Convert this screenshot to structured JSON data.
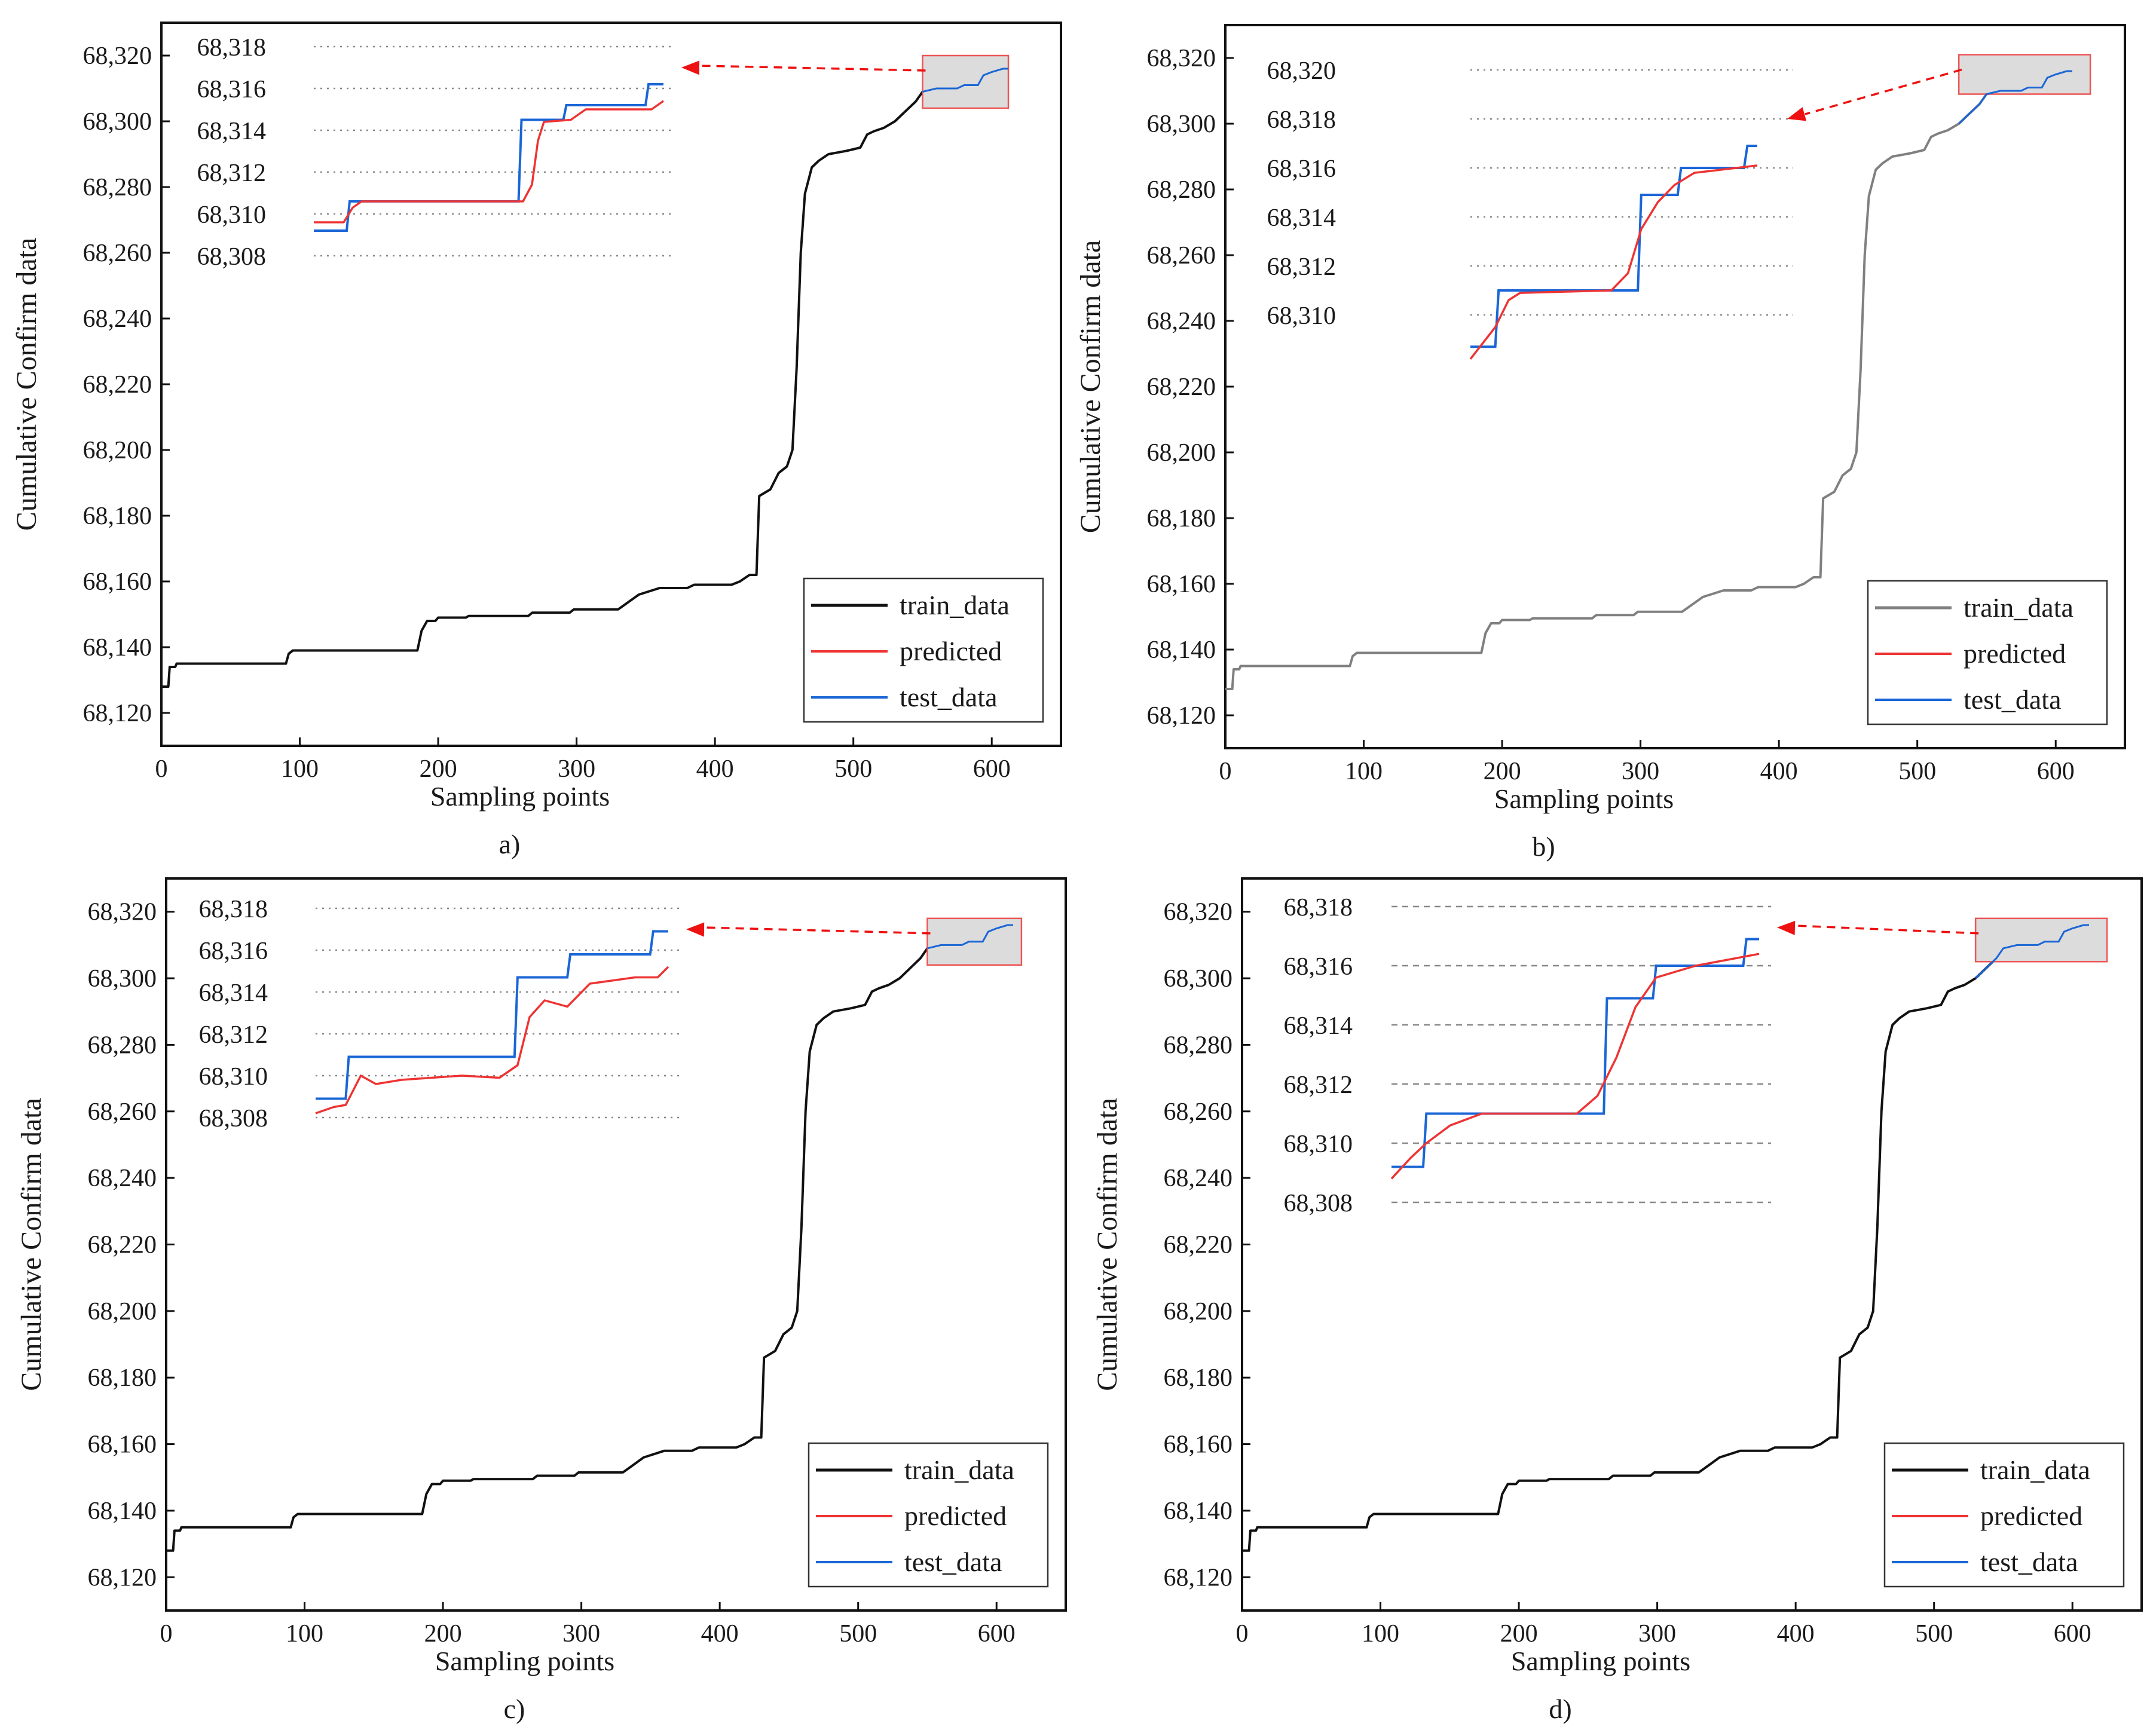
{
  "figure": {
    "panel_captions": [
      "a)",
      "b)",
      "c)",
      "d)"
    ]
  },
  "colors": {
    "train_black": "#111111",
    "train_gray": "#808080",
    "predicted": "#ee3333",
    "test": "#1a66d6",
    "zoom_box_fill": "#dcdcdc",
    "zoom_box_stroke": "#ee5555",
    "arrow": "#ee1111",
    "grid": "#888888"
  },
  "chart_data": [
    {
      "panel": "a)",
      "type": "line",
      "xlabel": "Sampling points",
      "ylabel": "Cumulative Confirm data",
      "xlim": [
        0,
        650
      ],
      "ylim": [
        68110,
        68330
      ],
      "xticks": [
        0,
        100,
        200,
        300,
        400,
        500,
        600
      ],
      "yticks": [
        "68,120",
        "68,140",
        "68,160",
        "68,180",
        "68,200",
        "68,220",
        "68,240",
        "68,260",
        "68,280",
        "68,300",
        "68,320"
      ],
      "legend": {
        "position": "bottom-right",
        "entries": [
          "train_data",
          "predicted",
          "test_data"
        ]
      },
      "train_color": "black",
      "zoom_region": {
        "x": [
          550,
          612
        ],
        "y": [
          68304,
          68320
        ]
      },
      "inset": {
        "yticks": [
          "68,308",
          "68,310",
          "68,312",
          "68,314",
          "68,316",
          "68,318"
        ],
        "grid_style": "dotted",
        "series": {
          "test": [
            [
              108,
              68309.2
            ],
            [
              130,
              68309.2
            ],
            [
              132,
              68310.6
            ],
            [
              245,
              68310.6
            ],
            [
              247,
              68314.5
            ],
            [
              275,
              68314.5
            ],
            [
              277,
              68315.2
            ],
            [
              330,
              68315.2
            ],
            [
              332,
              68316.2
            ],
            [
              342,
              68316.2
            ]
          ],
          "predicted": [
            [
              108,
              68309.6
            ],
            [
              128,
              68309.6
            ],
            [
              134,
              68310.3
            ],
            [
              140,
              68310.6
            ],
            [
              248,
              68310.6
            ],
            [
              254,
              68311.4
            ],
            [
              258,
              68313.5
            ],
            [
              262,
              68314.4
            ],
            [
              280,
              68314.5
            ],
            [
              290,
              68315.0
            ],
            [
              334,
              68315.0
            ],
            [
              342,
              68315.4
            ]
          ]
        }
      }
    },
    {
      "panel": "b)",
      "type": "line",
      "xlabel": "Sampling points",
      "ylabel": "Cumulative Confirm data",
      "xlim": [
        0,
        650
      ],
      "ylim": [
        68110,
        68330
      ],
      "xticks": [
        0,
        100,
        200,
        300,
        400,
        500,
        600
      ],
      "yticks": [
        "68,120",
        "68,140",
        "68,160",
        "68,180",
        "68,200",
        "68,220",
        "68,240",
        "68,260",
        "68,280",
        "68,300",
        "68,320"
      ],
      "legend": {
        "position": "bottom-right",
        "entries": [
          "train_data",
          "predicted",
          "test_data"
        ]
      },
      "train_color": "gray",
      "zoom_region": {
        "x": [
          530,
          625
        ],
        "y": [
          68309,
          68321
        ]
      },
      "inset": {
        "yticks": [
          "68,310",
          "68,312",
          "68,314",
          "68,316",
          "68,318",
          "68,320"
        ],
        "grid_style": "dotted",
        "series": {
          "test": [
            [
              175,
              68308.7
            ],
            [
              190,
              68308.7
            ],
            [
              192,
              68311.0
            ],
            [
              276,
              68311.0
            ],
            [
              278,
              68314.9
            ],
            [
              300,
              68314.9
            ],
            [
              302,
              68316.0
            ],
            [
              340,
              68316.0
            ],
            [
              342,
              68316.9
            ],
            [
              348,
              68316.9
            ]
          ],
          "predicted": [
            [
              175,
              68308.2
            ],
            [
              190,
              68309.5
            ],
            [
              198,
              68310.6
            ],
            [
              205,
              68310.9
            ],
            [
              260,
              68311.0
            ],
            [
              270,
              68311.7
            ],
            [
              278,
              68313.5
            ],
            [
              288,
              68314.6
            ],
            [
              298,
              68315.3
            ],
            [
              310,
              68315.8
            ],
            [
              348,
              68316.1
            ]
          ]
        }
      }
    },
    {
      "panel": "c)",
      "type": "line",
      "xlabel": "Sampling points",
      "ylabel": "Cumulative Confirm data",
      "xlim": [
        0,
        650
      ],
      "ylim": [
        68110,
        68330
      ],
      "xticks": [
        0,
        100,
        200,
        300,
        400,
        500,
        600
      ],
      "yticks": [
        "68,120",
        "68,140",
        "68,160",
        "68,180",
        "68,200",
        "68,220",
        "68,240",
        "68,260",
        "68,280",
        "68,300",
        "68,320"
      ],
      "legend": {
        "position": "bottom-right",
        "entries": [
          "train_data",
          "predicted",
          "test_data"
        ]
      },
      "train_color": "black",
      "zoom_region": {
        "x": [
          550,
          618
        ],
        "y": [
          68304,
          68318
        ]
      },
      "inset": {
        "yticks": [
          "68,308",
          "68,310",
          "68,312",
          "68,314",
          "68,316",
          "68,318"
        ],
        "grid_style": "dotted",
        "series": {
          "test": [
            [
              108,
              68308.9
            ],
            [
              128,
              68308.9
            ],
            [
              130,
              68310.9
            ],
            [
              240,
              68310.9
            ],
            [
              242,
              68314.7
            ],
            [
              275,
              68314.7
            ],
            [
              277,
              68315.8
            ],
            [
              330,
              68315.8
            ],
            [
              332,
              68316.9
            ],
            [
              342,
              68316.9
            ]
          ],
          "predicted": [
            [
              108,
              68308.2
            ],
            [
              120,
              68308.5
            ],
            [
              128,
              68308.6
            ],
            [
              138,
              68310.0
            ],
            [
              148,
              68309.6
            ],
            [
              165,
              68309.8
            ],
            [
              205,
              68310.0
            ],
            [
              230,
              68309.9
            ],
            [
              242,
              68310.5
            ],
            [
              250,
              68312.8
            ],
            [
              260,
              68313.6
            ],
            [
              275,
              68313.3
            ],
            [
              290,
              68314.4
            ],
            [
              320,
              68314.7
            ],
            [
              335,
              68314.7
            ],
            [
              342,
              68315.2
            ]
          ]
        }
      }
    },
    {
      "panel": "d)",
      "type": "line",
      "xlabel": "Sampling points",
      "ylabel": "Cumulative Confirm data",
      "xlim": [
        0,
        650
      ],
      "ylim": [
        68110,
        68330
      ],
      "xticks": [
        0,
        100,
        200,
        300,
        400,
        500,
        600
      ],
      "yticks": [
        "68,120",
        "68,140",
        "68,160",
        "68,180",
        "68,200",
        "68,220",
        "68,240",
        "68,260",
        "68,280",
        "68,300",
        "68,320"
      ],
      "legend": {
        "position": "bottom-right",
        "entries": [
          "train_data",
          "predicted",
          "test_data"
        ]
      },
      "train_color": "black",
      "zoom_region": {
        "x": [
          530,
          625
        ],
        "y": [
          68305,
          68318
        ]
      },
      "inset": {
        "yticks": [
          "68,308",
          "68,310",
          "68,312",
          "68,314",
          "68,316",
          "68,318"
        ],
        "grid_style": "dashed",
        "series": {
          "test": [
            [
              108,
              68309.2
            ],
            [
              128,
              68309.2
            ],
            [
              130,
              68311.0
            ],
            [
              242,
              68311.0
            ],
            [
              244,
              68314.9
            ],
            [
              273,
              68314.9
            ],
            [
              275,
              68316.0
            ],
            [
              330,
              68316.0
            ],
            [
              332,
              68316.9
            ],
            [
              340,
              68316.9
            ]
          ],
          "predicted": [
            [
              108,
              68308.8
            ],
            [
              120,
              68309.5
            ],
            [
              130,
              68310.0
            ],
            [
              145,
              68310.6
            ],
            [
              165,
              68311.0
            ],
            [
              225,
              68311.0
            ],
            [
              238,
              68311.6
            ],
            [
              250,
              68312.9
            ],
            [
              262,
              68314.6
            ],
            [
              275,
              68315.6
            ],
            [
              300,
              68316.0
            ],
            [
              320,
              68316.2
            ],
            [
              340,
              68316.4
            ]
          ]
        }
      }
    }
  ],
  "train_series_shared": {
    "note_x_y_pairs": "data units",
    "points": [
      [
        0,
        68128
      ],
      [
        5,
        68128
      ],
      [
        6,
        68134
      ],
      [
        10,
        68134
      ],
      [
        11,
        68135
      ],
      [
        90,
        68135
      ],
      [
        92,
        68138
      ],
      [
        95,
        68139
      ],
      [
        185,
        68139
      ],
      [
        188,
        68145
      ],
      [
        192,
        68148
      ],
      [
        198,
        68148
      ],
      [
        200,
        68149
      ],
      [
        220,
        68149
      ],
      [
        222,
        68149.5
      ],
      [
        265,
        68149.5
      ],
      [
        268,
        68150.5
      ],
      [
        295,
        68150.5
      ],
      [
        298,
        68151.5
      ],
      [
        330,
        68151.5
      ],
      [
        335,
        68153
      ],
      [
        345,
        68156
      ],
      [
        360,
        68158
      ],
      [
        380,
        68158
      ],
      [
        385,
        68159
      ],
      [
        412,
        68159
      ],
      [
        418,
        68160
      ],
      [
        425,
        68162
      ],
      [
        430,
        68162
      ],
      [
        432,
        68186
      ],
      [
        436,
        68187
      ],
      [
        440,
        68188
      ],
      [
        446,
        68193
      ],
      [
        452,
        68195
      ],
      [
        456,
        68200
      ],
      [
        459,
        68225
      ],
      [
        462,
        68260
      ],
      [
        465,
        68278
      ],
      [
        470,
        68286
      ],
      [
        475,
        68288
      ],
      [
        482,
        68290
      ],
      [
        495,
        68291
      ],
      [
        505,
        68292
      ],
      [
        510,
        68296
      ],
      [
        515,
        68297
      ],
      [
        522,
        68298
      ],
      [
        530,
        68300
      ],
      [
        535,
        68302
      ],
      [
        545,
        68306
      ],
      [
        550,
        68309
      ],
      [
        560,
        68310
      ],
      [
        575,
        68310
      ],
      [
        580,
        68311
      ],
      [
        590,
        68311
      ],
      [
        594,
        68314
      ],
      [
        600,
        68315
      ],
      [
        608,
        68316
      ],
      [
        612,
        68316
      ]
    ]
  }
}
